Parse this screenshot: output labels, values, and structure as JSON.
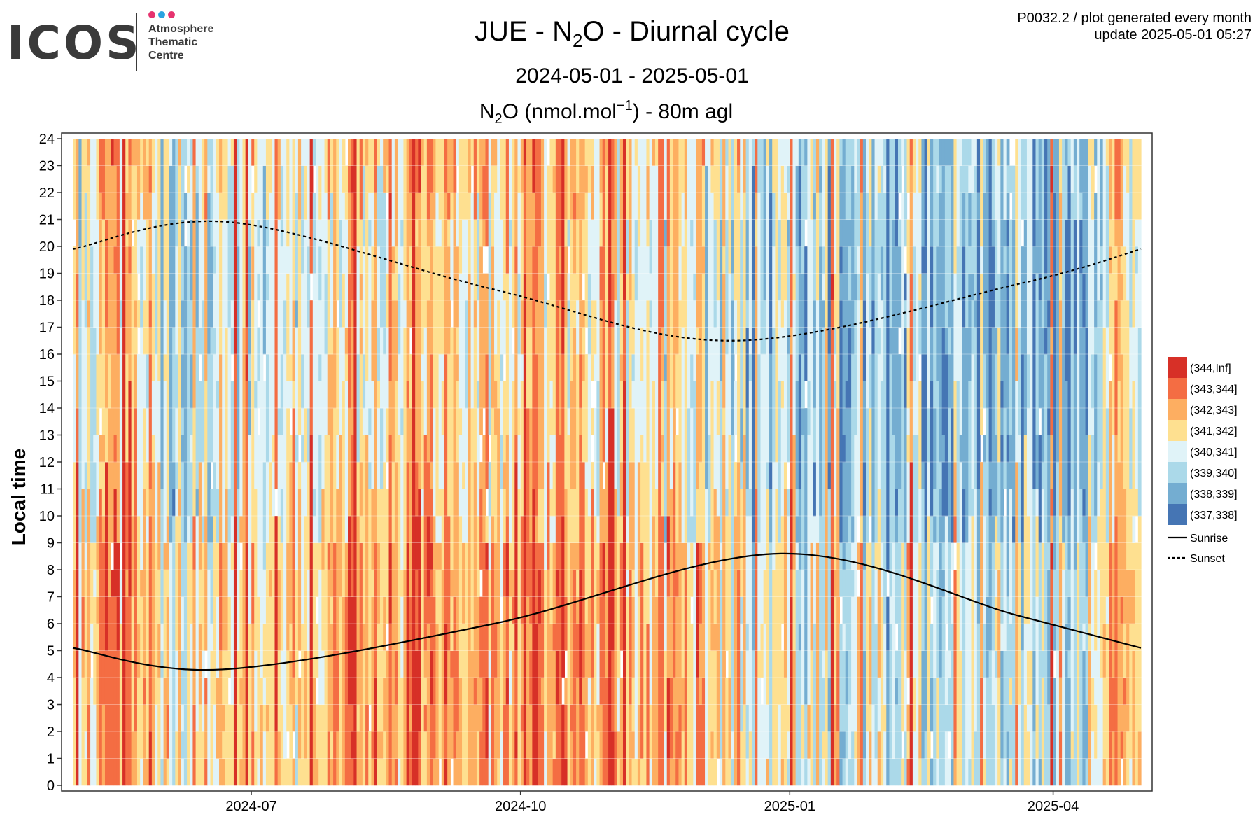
{
  "header": {
    "logo_text": "ICOS",
    "logo_sub": [
      "Atmosphere",
      "Thematic",
      "Centre"
    ],
    "logo_dot_colors": [
      "#e6336f",
      "#2aa3e0",
      "#e6336f"
    ],
    "meta_line1": "P0032.2 / plot generated every month",
    "meta_line2": "update  2025-05-01 05:27"
  },
  "chart_data": {
    "type": "heatmap",
    "title": "JUE - N2O - Diurnal cycle",
    "title_parts": [
      "JUE - N",
      "2",
      "O - Diurnal cycle"
    ],
    "subtitle": "2024-05-01 - 2025-05-01",
    "subtitle2": "N2O (nmol.mol-1) - 80m agl",
    "subtitle2_parts": [
      "N",
      "2",
      "O (nmol.mol",
      "−1",
      ") - 80m agl"
    ],
    "xlabel": "",
    "ylabel": "Local time",
    "x_range": [
      "2024-05-01",
      "2025-05-01"
    ],
    "x_ticks": [
      "2024-07",
      "2024-10",
      "2025-01",
      "2025-04"
    ],
    "x_tick_dates": [
      "2024-07-01",
      "2024-10-01",
      "2025-01-01",
      "2025-04-01"
    ],
    "y_range": [
      0,
      24
    ],
    "y_ticks": [
      0,
      1,
      2,
      3,
      4,
      5,
      6,
      7,
      8,
      9,
      10,
      11,
      12,
      13,
      14,
      15,
      16,
      17,
      18,
      19,
      20,
      21,
      22,
      23,
      24
    ],
    "grid": true,
    "legend_position": "right",
    "bins": [
      {
        "label": "(344,Inf]",
        "color": "#d73027"
      },
      {
        "label": "(343,344]",
        "color": "#f46d43"
      },
      {
        "label": "(342,343]",
        "color": "#fdae61"
      },
      {
        "label": "(341,342]",
        "color": "#fee090"
      },
      {
        "label": "(340,341]",
        "color": "#e0f3f8"
      },
      {
        "label": "(339,340]",
        "color": "#abd9e9"
      },
      {
        "label": "(338,339]",
        "color": "#74add1"
      },
      {
        "label": "(337,338]",
        "color": "#4575b4"
      }
    ],
    "lines": [
      {
        "name": "Sunrise",
        "style": "solid",
        "dates": [
          "2024-05-01",
          "2024-06-21",
          "2024-09-22",
          "2024-12-29",
          "2025-03-20",
          "2025-05-01"
        ],
        "hours": [
          5.1,
          4.3,
          6.0,
          8.6,
          6.3,
          5.1
        ]
      },
      {
        "name": "Sunset",
        "style": "dashed",
        "dates": [
          "2024-05-01",
          "2024-06-24",
          "2024-09-22",
          "2024-12-13",
          "2025-03-20",
          "2025-05-01"
        ],
        "hours": [
          19.9,
          20.9,
          18.4,
          16.5,
          18.6,
          19.9
        ]
      }
    ]
  }
}
